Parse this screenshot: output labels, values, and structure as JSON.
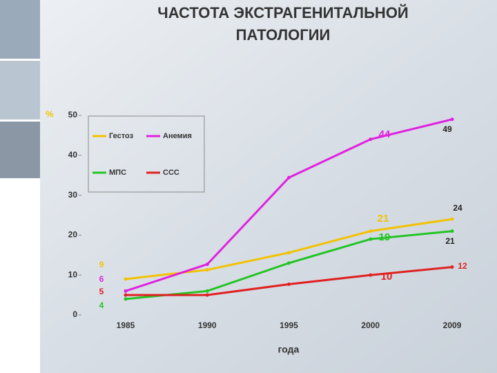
{
  "title": [
    "ЧАСТОТА ЭКСТРАГЕНИТАЛЬНОЙ",
    "ПАТОЛОГИИ"
  ],
  "chart_data": {
    "type": "line",
    "y_label": "%",
    "x_label": "года",
    "categories": [
      "1985",
      "1990",
      "1995",
      "2000",
      "2009"
    ],
    "ylim": [
      0,
      50
    ],
    "yticks": [
      0,
      10,
      20,
      30,
      40,
      50
    ],
    "series": [
      {
        "name": "Гестоз",
        "color": "#f2c200",
        "values": [
          9,
          11.3,
          15.6,
          21,
          24
        ],
        "value_labels": [
          "9",
          null,
          null,
          "21",
          "24"
        ]
      },
      {
        "name": "Анемия",
        "color": "#e020e0",
        "values": [
          6,
          12.7,
          34.4,
          44,
          49
        ],
        "value_labels": [
          "6",
          null,
          null,
          "44",
          "49"
        ]
      },
      {
        "name": "МПС",
        "color": "#22c422",
        "values": [
          4,
          6,
          13,
          19,
          21
        ],
        "value_labels": [
          "4",
          null,
          null,
          "19",
          "21"
        ]
      },
      {
        "name": "ССС",
        "color": "#e02020",
        "values": [
          5,
          5,
          7.7,
          10,
          12
        ],
        "value_labels": [
          "5",
          null,
          null,
          "10",
          "12"
        ]
      }
    ]
  }
}
